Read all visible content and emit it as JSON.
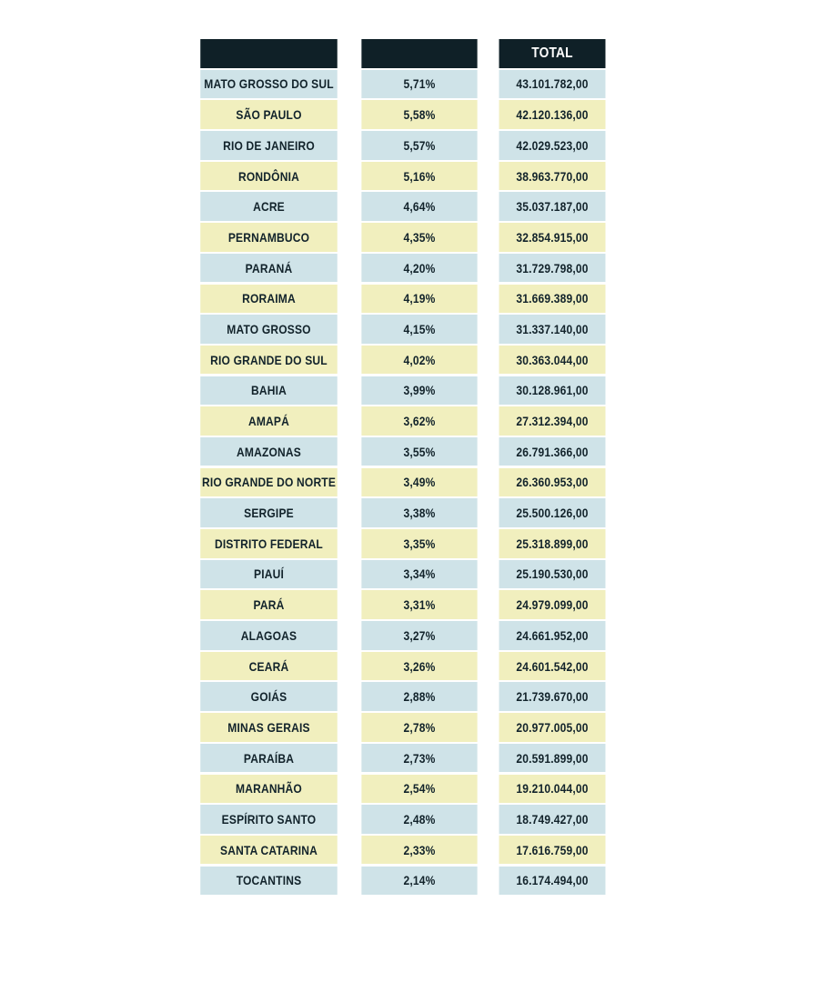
{
  "chart_data": {
    "type": "table",
    "columns": [
      "",
      "",
      "TOTAL"
    ],
    "colors": {
      "header": "#0f2027",
      "row_a": "#cfe3e8",
      "row_b": "#f1efbe",
      "text": "#12232b"
    },
    "rows": [
      {
        "state": "MATO GROSSO DO SUL",
        "pct": "5,71%",
        "total": "43.101.782,00"
      },
      {
        "state": "SÃO PAULO",
        "pct": "5,58%",
        "total": "42.120.136,00"
      },
      {
        "state": "RIO DE JANEIRO",
        "pct": "5,57%",
        "total": "42.029.523,00"
      },
      {
        "state": "RONDÔNIA",
        "pct": "5,16%",
        "total": "38.963.770,00"
      },
      {
        "state": "ACRE",
        "pct": "4,64%",
        "total": "35.037.187,00"
      },
      {
        "state": "PERNAMBUCO",
        "pct": "4,35%",
        "total": "32.854.915,00"
      },
      {
        "state": "PARANÁ",
        "pct": "4,20%",
        "total": "31.729.798,00"
      },
      {
        "state": "RORAIMA",
        "pct": "4,19%",
        "total": "31.669.389,00"
      },
      {
        "state": "MATO GROSSO",
        "pct": "4,15%",
        "total": "31.337.140,00"
      },
      {
        "state": "RIO GRANDE DO SUL",
        "pct": "4,02%",
        "total": "30.363.044,00"
      },
      {
        "state": "BAHIA",
        "pct": "3,99%",
        "total": "30.128.961,00"
      },
      {
        "state": "AMAPÁ",
        "pct": "3,62%",
        "total": "27.312.394,00"
      },
      {
        "state": "AMAZONAS",
        "pct": "3,55%",
        "total": "26.791.366,00"
      },
      {
        "state": "RIO GRANDE DO NORTE",
        "pct": "3,49%",
        "total": "26.360.953,00"
      },
      {
        "state": "SERGIPE",
        "pct": "3,38%",
        "total": "25.500.126,00"
      },
      {
        "state": "DISTRITO FEDERAL",
        "pct": "3,35%",
        "total": "25.318.899,00"
      },
      {
        "state": "PIAUÍ",
        "pct": "3,34%",
        "total": "25.190.530,00"
      },
      {
        "state": "PARÁ",
        "pct": "3,31%",
        "total": "24.979.099,00"
      },
      {
        "state": "ALAGOAS",
        "pct": "3,27%",
        "total": "24.661.952,00"
      },
      {
        "state": "CEARÁ",
        "pct": "3,26%",
        "total": "24.601.542,00"
      },
      {
        "state": "GOIÁS",
        "pct": "2,88%",
        "total": "21.739.670,00"
      },
      {
        "state": "MINAS GERAIS",
        "pct": "2,78%",
        "total": "20.977.005,00"
      },
      {
        "state": "PARAÍBA",
        "pct": "2,73%",
        "total": "20.591.899,00"
      },
      {
        "state": "MARANHÃO",
        "pct": "2,54%",
        "total": "19.210.044,00"
      },
      {
        "state": "ESPÍRITO SANTO",
        "pct": "2,48%",
        "total": "18.749.427,00"
      },
      {
        "state": "SANTA CATARINA",
        "pct": "2,33%",
        "total": "17.616.759,00"
      },
      {
        "state": "TOCANTINS",
        "pct": "2,14%",
        "total": "16.174.494,00"
      }
    ]
  }
}
